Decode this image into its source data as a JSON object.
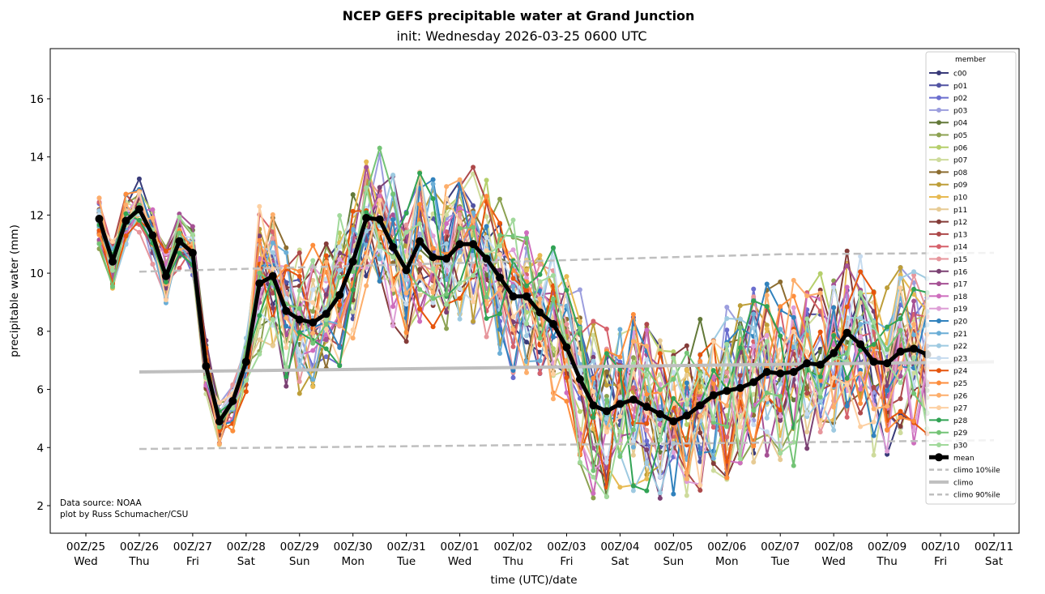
{
  "chart_data": {
    "type": "line",
    "title": "NCEP GEFS precipitable water at Grand Junction",
    "subtitle": "init: Wednesday 2026-03-25 0600 UTC",
    "xlabel": "time (UTC)/date",
    "ylabel": "precipitable water (mm)",
    "ylim": [
      1.0,
      17.7
    ],
    "yticks": [
      2,
      4,
      6,
      8,
      10,
      12,
      14,
      16
    ],
    "x_unit": "hours since 00Z/25",
    "xlim_hours": [
      -18,
      426
    ],
    "xticks": [
      {
        "hour": 0,
        "top": "00Z/25",
        "bottom": "Wed"
      },
      {
        "hour": 24,
        "top": "00Z/26",
        "bottom": "Thu"
      },
      {
        "hour": 48,
        "top": "00Z/27",
        "bottom": "Fri"
      },
      {
        "hour": 72,
        "top": "00Z/28",
        "bottom": "Sat"
      },
      {
        "hour": 96,
        "top": "00Z/29",
        "bottom": "Sun"
      },
      {
        "hour": 120,
        "top": "00Z/30",
        "bottom": "Mon"
      },
      {
        "hour": 144,
        "top": "00Z/31",
        "bottom": "Tue"
      },
      {
        "hour": 168,
        "top": "00Z/01",
        "bottom": "Wed"
      },
      {
        "hour": 192,
        "top": "00Z/02",
        "bottom": "Thu"
      },
      {
        "hour": 216,
        "top": "00Z/03",
        "bottom": "Fri"
      },
      {
        "hour": 240,
        "top": "00Z/04",
        "bottom": "Sat"
      },
      {
        "hour": 264,
        "top": "00Z/05",
        "bottom": "Sun"
      },
      {
        "hour": 288,
        "top": "00Z/06",
        "bottom": "Mon"
      },
      {
        "hour": 312,
        "top": "00Z/07",
        "bottom": "Tue"
      },
      {
        "hour": 336,
        "top": "00Z/08",
        "bottom": "Wed"
      },
      {
        "hour": 360,
        "top": "00Z/09",
        "bottom": "Thu"
      },
      {
        "hour": 384,
        "top": "00Z/10",
        "bottom": "Fri"
      },
      {
        "hour": 408,
        "top": "00Z/11",
        "bottom": "Sat"
      }
    ],
    "x_hours_start": 6,
    "x_hours_step": 6,
    "mean": {
      "name": "mean",
      "color": "#000000",
      "values": [
        11.87,
        10.4,
        11.8,
        12.2,
        11.3,
        9.9,
        11.1,
        10.7,
        6.8,
        4.9,
        5.6,
        6.95,
        9.65,
        9.9,
        8.7,
        8.4,
        8.3,
        8.6,
        9.25,
        10.4,
        11.9,
        11.85,
        10.9,
        10.1,
        11.1,
        10.55,
        10.5,
        11.0,
        11.0,
        10.5,
        9.85,
        9.2,
        9.2,
        8.65,
        8.25,
        7.45,
        6.35,
        5.45,
        5.25,
        5.5,
        5.65,
        5.4,
        5.15,
        4.9,
        5.1,
        5.45,
        5.8,
        5.95,
        6.05,
        6.25,
        6.6,
        6.55,
        6.6,
        6.9,
        6.85,
        7.25,
        7.95,
        7.55,
        6.95,
        6.9,
        7.3,
        7.4,
        7.2
      ]
    },
    "climo": [
      {
        "name": "climo 10%ile",
        "style": "dashed",
        "color": "#bfbfbf",
        "hours": [
          24,
          408
        ],
        "values": [
          3.95,
          4.25
        ]
      },
      {
        "name": "climo",
        "style": "solid",
        "color": "#bfbfbf",
        "hours": [
          24,
          408
        ],
        "values": [
          6.6,
          6.95
        ]
      },
      {
        "name": "climo 90%ile",
        "style": "dashed",
        "color": "#bfbfbf",
        "hours": [
          24,
          312,
          408
        ],
        "values": [
          10.05,
          10.65,
          10.7
        ]
      }
    ],
    "members": [
      {
        "name": "c00",
        "color": "#393b79"
      },
      {
        "name": "p01",
        "color": "#5254a3"
      },
      {
        "name": "p02",
        "color": "#6b6ecf"
      },
      {
        "name": "p03",
        "color": "#9c9ede"
      },
      {
        "name": "p04",
        "color": "#637939"
      },
      {
        "name": "p05",
        "color": "#8ca252"
      },
      {
        "name": "p06",
        "color": "#b5cf6b"
      },
      {
        "name": "p07",
        "color": "#cedb9c"
      },
      {
        "name": "p08",
        "color": "#8c6d31"
      },
      {
        "name": "p09",
        "color": "#bd9e39"
      },
      {
        "name": "p10",
        "color": "#e7ba52"
      },
      {
        "name": "p11",
        "color": "#e7cb94"
      },
      {
        "name": "p12",
        "color": "#843c39"
      },
      {
        "name": "p13",
        "color": "#ad494a"
      },
      {
        "name": "p14",
        "color": "#d6616b"
      },
      {
        "name": "p15",
        "color": "#e7969c"
      },
      {
        "name": "p16",
        "color": "#7b4173"
      },
      {
        "name": "p17",
        "color": "#a55194"
      },
      {
        "name": "p18",
        "color": "#ce6dbd"
      },
      {
        "name": "p19",
        "color": "#de9ed6"
      },
      {
        "name": "p20",
        "color": "#3182bd"
      },
      {
        "name": "p21",
        "color": "#6baed6"
      },
      {
        "name": "p22",
        "color": "#9ecae1"
      },
      {
        "name": "p23",
        "color": "#c6dbef"
      },
      {
        "name": "p24",
        "color": "#e6550d"
      },
      {
        "name": "p25",
        "color": "#fd8d3c"
      },
      {
        "name": "p26",
        "color": "#fdae6b"
      },
      {
        "name": "p27",
        "color": "#fdd0a2"
      },
      {
        "name": "p28",
        "color": "#31a354"
      },
      {
        "name": "p29",
        "color": "#74c476"
      },
      {
        "name": "p30",
        "color": "#a1d99b"
      }
    ],
    "member_values_note": "approximate; individual members reconstructed as spread around the mean",
    "legend": {
      "title": "member",
      "placement": "right"
    },
    "grid": false
  },
  "annotation": {
    "line1": "Data source: NOAA",
    "line2": "plot by Russ Schumacher/CSU"
  }
}
